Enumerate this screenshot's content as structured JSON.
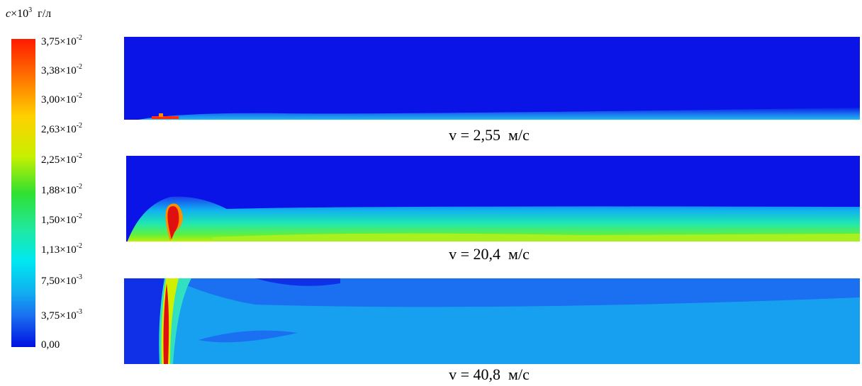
{
  "legend": {
    "title": {
      "symbol": "c",
      "multiplier": "×10",
      "exponent": "3",
      "unit": "г/л"
    },
    "levels": [
      {
        "mantissa": "3,75",
        "base": "×10",
        "exponent": "-2"
      },
      {
        "mantissa": "3,38",
        "base": "×10",
        "exponent": "-2"
      },
      {
        "mantissa": "3,00",
        "base": "×10",
        "exponent": "-2"
      },
      {
        "mantissa": "2,63",
        "base": "×10",
        "exponent": "-2"
      },
      {
        "mantissa": "2,25",
        "base": "×10",
        "exponent": "-2"
      },
      {
        "mantissa": "1,88",
        "base": "×10",
        "exponent": "-2"
      },
      {
        "mantissa": "1,50",
        "base": "×10",
        "exponent": "-2"
      },
      {
        "mantissa": "1,13",
        "base": "×10",
        "exponent": "-2"
      },
      {
        "mantissa": "7,50",
        "base": "×10",
        "exponent": "-3"
      },
      {
        "mantissa": "3,75",
        "base": "×10",
        "exponent": "-3"
      },
      {
        "mantissa": "0,00"
      }
    ]
  },
  "panels": [
    {
      "caption": "v = 2,55  м/с"
    },
    {
      "caption": "v = 20,4  м/с"
    },
    {
      "caption": "v = 40,8  м/с"
    }
  ]
}
